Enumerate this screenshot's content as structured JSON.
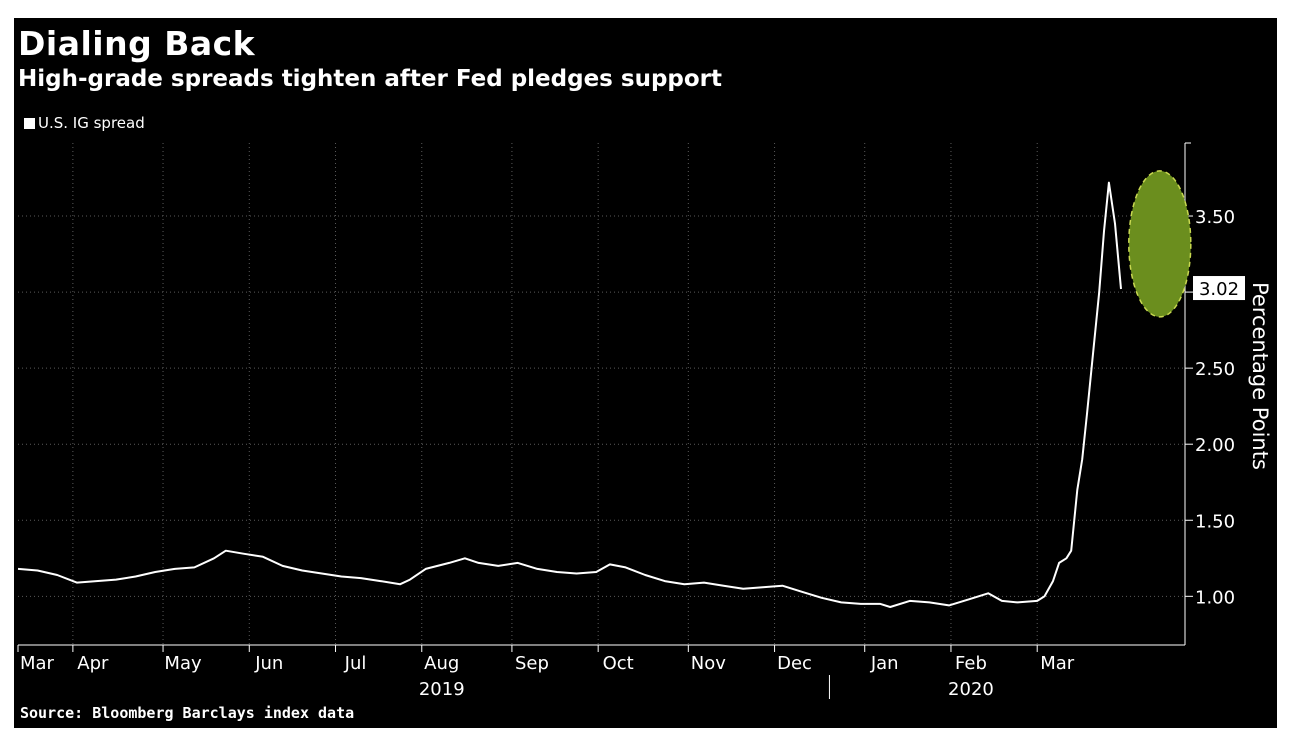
{
  "chart_data": {
    "type": "line",
    "title": "Dialing Back",
    "subtitle": "High-grade spreads tighten after Fed pledges support",
    "source": "Source: Bloomberg Barclays index data",
    "ylabel": "Percentage Points",
    "ylim": [
      0.68,
      3.98
    ],
    "yticks": [
      1.0,
      1.5,
      2.0,
      2.5,
      3.0,
      3.5
    ],
    "ytick_labels": [
      "1.00",
      "1.50",
      "2.00",
      "2.50",
      "",
      "3.50"
    ],
    "last_value_label": "3.02",
    "x_range_weeks": [
      0,
      56
    ],
    "month_ticks": [
      {
        "label": "Mar",
        "week": 0
      },
      {
        "label": "Apr",
        "week": 2.8
      },
      {
        "label": "May",
        "week": 7.4
      },
      {
        "label": "Jun",
        "week": 11.8
      },
      {
        "label": "Jul",
        "week": 16.2
      },
      {
        "label": "Aug",
        "week": 20.6
      },
      {
        "label": "Sep",
        "week": 25.2
      },
      {
        "label": "Oct",
        "week": 29.6
      },
      {
        "label": "Nov",
        "week": 34.2
      },
      {
        "label": "Dec",
        "week": 38.6
      },
      {
        "label": "Jan",
        "week": 43.2
      },
      {
        "label": "Feb",
        "week": 47.6
      },
      {
        "label": "Mar",
        "week": 52.0
      }
    ],
    "year_labels": [
      {
        "label": "2019",
        "week": 20.6
      },
      {
        "label": "2020",
        "week": 47.6
      }
    ],
    "year_divider_week": 41.4,
    "series": [
      {
        "name": "U.S. IG spread",
        "color": "#ffffff",
        "points": [
          [
            0,
            1.18
          ],
          [
            1,
            1.17
          ],
          [
            2,
            1.14
          ],
          [
            3,
            1.09
          ],
          [
            4,
            1.1
          ],
          [
            5,
            1.11
          ],
          [
            6,
            1.13
          ],
          [
            7,
            1.16
          ],
          [
            8,
            1.18
          ],
          [
            9,
            1.19
          ],
          [
            10,
            1.25
          ],
          [
            10.6,
            1.3
          ],
          [
            11.5,
            1.28
          ],
          [
            12.5,
            1.26
          ],
          [
            13.5,
            1.2
          ],
          [
            14.5,
            1.17
          ],
          [
            15.5,
            1.15
          ],
          [
            16.5,
            1.13
          ],
          [
            17.5,
            1.12
          ],
          [
            18.5,
            1.1
          ],
          [
            19.5,
            1.08
          ],
          [
            20,
            1.11
          ],
          [
            20.8,
            1.18
          ],
          [
            22,
            1.22
          ],
          [
            22.8,
            1.25
          ],
          [
            23.5,
            1.22
          ],
          [
            24.5,
            1.2
          ],
          [
            25.5,
            1.22
          ],
          [
            26.5,
            1.18
          ],
          [
            27.5,
            1.16
          ],
          [
            28.5,
            1.15
          ],
          [
            29.5,
            1.16
          ],
          [
            30.2,
            1.21
          ],
          [
            31,
            1.19
          ],
          [
            32,
            1.14
          ],
          [
            33,
            1.1
          ],
          [
            34,
            1.08
          ],
          [
            35,
            1.09
          ],
          [
            36,
            1.07
          ],
          [
            37,
            1.05
          ],
          [
            38,
            1.06
          ],
          [
            39,
            1.07
          ],
          [
            40,
            1.03
          ],
          [
            41,
            0.99
          ],
          [
            42,
            0.96
          ],
          [
            43,
            0.95
          ],
          [
            44,
            0.95
          ],
          [
            44.5,
            0.93
          ],
          [
            45.5,
            0.97
          ],
          [
            46.5,
            0.96
          ],
          [
            47.5,
            0.94
          ],
          [
            48.5,
            0.98
          ],
          [
            49.5,
            1.02
          ],
          [
            50.2,
            0.97
          ],
          [
            51,
            0.96
          ],
          [
            52,
            0.97
          ],
          [
            52.6,
            1.0
          ],
          [
            53.3,
            1.1
          ],
          [
            53.8,
            1.22
          ],
          [
            54.4,
            1.25
          ],
          [
            54.8,
            1.3
          ],
          [
            55.3,
            1.7
          ],
          [
            55.7,
            1.9
          ],
          [
            56.1,
            2.2
          ],
          [
            56.6,
            2.6
          ],
          [
            57.1,
            3.0
          ],
          [
            57.5,
            3.4
          ],
          [
            57.9,
            3.72
          ],
          [
            58.4,
            3.45
          ],
          [
            58.9,
            3.02
          ]
        ]
      }
    ],
    "highlight": {
      "shape": "ellipse",
      "center": [
        58.0,
        3.33
      ],
      "color": "#6b8e1e"
    }
  }
}
